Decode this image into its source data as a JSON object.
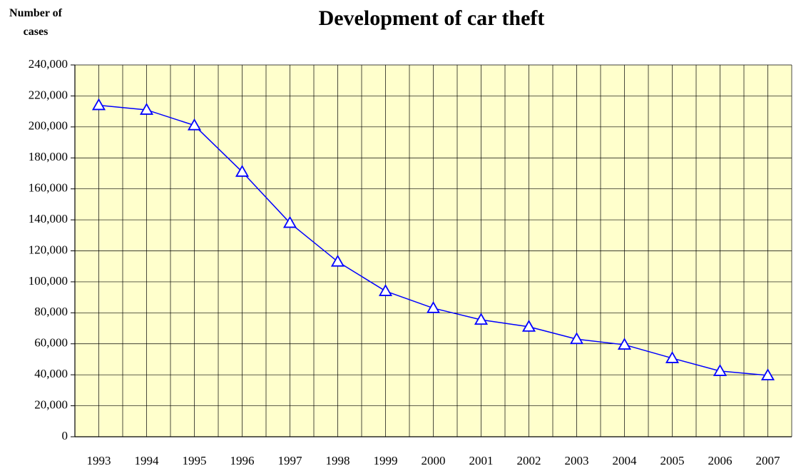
{
  "chart_data": {
    "type": "line",
    "title": "Development of car theft",
    "y_label": "Number of cases",
    "categories": [
      "1993",
      "1994",
      "1995",
      "1996",
      "1997",
      "1998",
      "1999",
      "2000",
      "2001",
      "2002",
      "2003",
      "2004",
      "2005",
      "2006",
      "2007"
    ],
    "series": [
      {
        "name": "Car theft",
        "color": "#0000ff",
        "values": [
          214000,
          211000,
          201000,
          171000,
          138000,
          113000,
          94000,
          83000,
          75500,
          71000,
          63000,
          59400,
          50700,
          42400,
          39600
        ]
      }
    ],
    "ylim": [
      0,
      240000
    ],
    "yticks": [
      {
        "value": 0,
        "label": "0"
      },
      {
        "value": 20000,
        "label": "20,000"
      },
      {
        "value": 40000,
        "label": "40,000"
      },
      {
        "value": 60000,
        "label": "60,000"
      },
      {
        "value": 80000,
        "label": "80,000"
      },
      {
        "value": 100000,
        "label": "100,000"
      },
      {
        "value": 120000,
        "label": "120,000"
      },
      {
        "value": 140000,
        "label": "140,000"
      },
      {
        "value": 160000,
        "label": "160,000"
      },
      {
        "value": 180000,
        "label": "180,000"
      },
      {
        "value": 200000,
        "label": "200,000"
      },
      {
        "value": 220000,
        "label": "220,000"
      },
      {
        "value": 240000,
        "label": "240,000"
      }
    ],
    "grid": true,
    "plot_background": "#ffffcc"
  }
}
